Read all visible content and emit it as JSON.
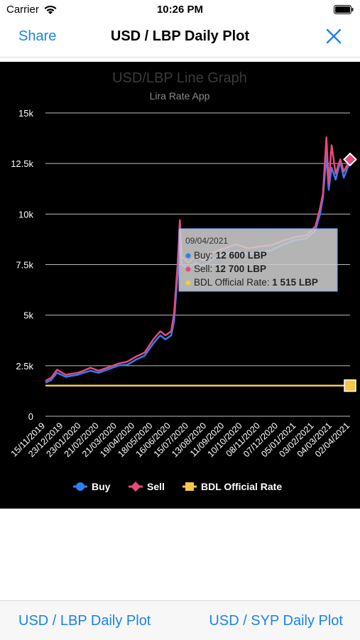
{
  "status_bar": {
    "carrier": "Carrier",
    "time": "10:26 PM"
  },
  "nav": {
    "share_label": "Share",
    "title": "USD / LBP Daily Plot"
  },
  "chart_data": {
    "type": "line",
    "title": "USD/LBP Line Graph",
    "subtitle": "Lira Rate App",
    "ylim": [
      0,
      15000
    ],
    "y_ticks": [
      {
        "value": 0,
        "label": "0"
      },
      {
        "value": 2500,
        "label": "2.5k"
      },
      {
        "value": 5000,
        "label": "5k"
      },
      {
        "value": 7500,
        "label": "7.5k"
      },
      {
        "value": 10000,
        "label": "10k"
      },
      {
        "value": 12500,
        "label": "12.5k"
      },
      {
        "value": 15000,
        "label": "15k"
      }
    ],
    "x_range": [
      "2019-11-15",
      "2021-04-26"
    ],
    "x_ticks": [
      "15/11/2019",
      "23/12/2019",
      "23/01/2020",
      "21/02/2020",
      "21/03/2020",
      "19/04/2020",
      "18/05/2020",
      "16/06/2020",
      "15/07/2020",
      "13/08/2020",
      "11/09/2020",
      "10/10/2020",
      "08/11/2020",
      "07/12/2020",
      "05/01/2021",
      "03/02/2021",
      "04/03/2021",
      "02/04/2021"
    ],
    "grid": "horizontal",
    "legend_position": "bottom",
    "series": [
      {
        "name": "Buy",
        "color": "#2f7ff5",
        "points": [
          [
            "2019-11-15",
            1650
          ],
          [
            "2019-11-25",
            1800
          ],
          [
            "2019-12-05",
            2150
          ],
          [
            "2019-12-20",
            1950
          ],
          [
            "2020-01-10",
            2050
          ],
          [
            "2020-01-20",
            2150
          ],
          [
            "2020-02-01",
            2250
          ],
          [
            "2020-02-15",
            2150
          ],
          [
            "2020-03-01",
            2300
          ],
          [
            "2020-03-20",
            2500
          ],
          [
            "2020-04-05",
            2550
          ],
          [
            "2020-04-20",
            2800
          ],
          [
            "2020-05-05",
            3000
          ],
          [
            "2020-05-20",
            3600
          ],
          [
            "2020-06-01",
            4000
          ],
          [
            "2020-06-10",
            3800
          ],
          [
            "2020-06-20",
            4000
          ],
          [
            "2020-06-25",
            4700
          ],
          [
            "2020-07-01",
            7000
          ],
          [
            "2020-07-05",
            9000
          ],
          [
            "2020-07-08",
            7500
          ],
          [
            "2020-07-20",
            7300
          ],
          [
            "2020-08-01",
            7600
          ],
          [
            "2020-08-15",
            7400
          ],
          [
            "2020-09-01",
            7800
          ],
          [
            "2020-09-20",
            8000
          ],
          [
            "2020-10-10",
            8200
          ],
          [
            "2020-11-01",
            8000
          ],
          [
            "2020-11-20",
            8100
          ],
          [
            "2020-12-10",
            8200
          ],
          [
            "2021-01-01",
            8500
          ],
          [
            "2021-01-20",
            8700
          ],
          [
            "2021-02-10",
            8800
          ],
          [
            "2021-02-25",
            9200
          ],
          [
            "2021-03-05",
            10000
          ],
          [
            "2021-03-10",
            10800
          ],
          [
            "2021-03-16",
            12900
          ],
          [
            "2021-03-20",
            11200
          ],
          [
            "2021-03-25",
            12300
          ],
          [
            "2021-04-01",
            11700
          ],
          [
            "2021-04-09",
            12600
          ],
          [
            "2021-04-15",
            11800
          ],
          [
            "2021-04-26",
            12600
          ]
        ]
      },
      {
        "name": "Sell",
        "color": "#e84a7a",
        "points": [
          [
            "2019-11-15",
            1750
          ],
          [
            "2019-11-25",
            1900
          ],
          [
            "2019-12-05",
            2300
          ],
          [
            "2019-12-20",
            2050
          ],
          [
            "2020-01-10",
            2150
          ],
          [
            "2020-01-20",
            2250
          ],
          [
            "2020-02-01",
            2400
          ],
          [
            "2020-02-15",
            2250
          ],
          [
            "2020-03-01",
            2400
          ],
          [
            "2020-03-20",
            2600
          ],
          [
            "2020-04-05",
            2700
          ],
          [
            "2020-04-20",
            2950
          ],
          [
            "2020-05-05",
            3150
          ],
          [
            "2020-05-20",
            3800
          ],
          [
            "2020-06-01",
            4200
          ],
          [
            "2020-06-10",
            4000
          ],
          [
            "2020-06-20",
            4200
          ],
          [
            "2020-06-25",
            5100
          ],
          [
            "2020-07-01",
            7500
          ],
          [
            "2020-07-05",
            9700
          ],
          [
            "2020-07-08",
            7900
          ],
          [
            "2020-07-20",
            7600
          ],
          [
            "2020-08-01",
            7900
          ],
          [
            "2020-08-15",
            7700
          ],
          [
            "2020-09-01",
            8100
          ],
          [
            "2020-09-20",
            8300
          ],
          [
            "2020-10-10",
            8500
          ],
          [
            "2020-11-01",
            8300
          ],
          [
            "2020-11-20",
            8400
          ],
          [
            "2020-12-10",
            8450
          ],
          [
            "2021-01-01",
            8700
          ],
          [
            "2021-01-20",
            8850
          ],
          [
            "2021-02-10",
            8950
          ],
          [
            "2021-02-25",
            9400
          ],
          [
            "2021-03-05",
            10300
          ],
          [
            "2021-03-10",
            11000
          ],
          [
            "2021-03-16",
            13800
          ],
          [
            "2021-03-20",
            11500
          ],
          [
            "2021-03-25",
            13400
          ],
          [
            "2021-04-01",
            12000
          ],
          [
            "2021-04-09",
            12700
          ],
          [
            "2021-04-15",
            12100
          ],
          [
            "2021-04-26",
            12700
          ]
        ]
      },
      {
        "name": "BDL Official Rate",
        "color": "#f5c74a",
        "points": [
          [
            "2019-11-15",
            1515
          ],
          [
            "2021-04-26",
            1515
          ]
        ]
      }
    ],
    "tooltip": {
      "date": "09/04/2021",
      "rows": [
        {
          "label": "Buy: ",
          "value": "12 600 LBP",
          "color": "#2f7ff5"
        },
        {
          "label": "Sell: ",
          "value": "12 700 LBP",
          "color": "#e84a7a"
        },
        {
          "label": "BDL Official Rate: ",
          "value": "1 515 LBP",
          "color": "#f5c74a"
        }
      ]
    }
  },
  "tabs": [
    {
      "label": "USD / LBP Daily Plot"
    },
    {
      "label": "USD / SYP Daily Plot"
    }
  ]
}
